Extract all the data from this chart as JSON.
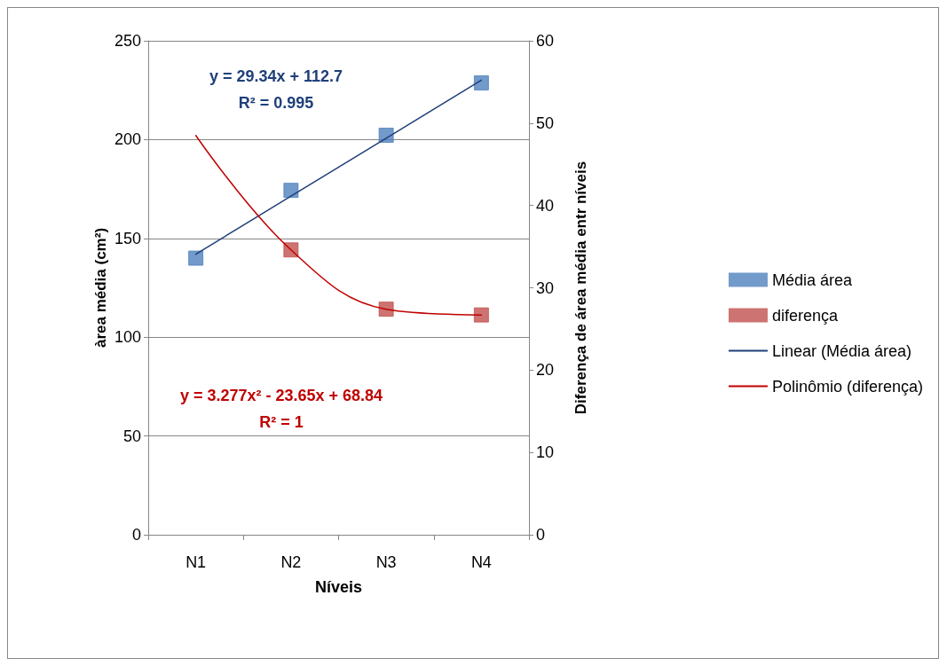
{
  "chart_data": {
    "type": "scatter",
    "xlabel": "Níveis",
    "ylabel": "àrea média (cm²)",
    "y2label": "Diferença de área média entr níveis",
    "categories": [
      "N1",
      "N2",
      "N3",
      "N4"
    ],
    "series": [
      {
        "name": "Média área",
        "marker": "square",
        "color": "#4f81bd",
        "values": [
          140,
          174.3,
          202.2,
          228.7
        ]
      },
      {
        "name": "diferença",
        "marker": "square",
        "axis": "y2",
        "color": "#c0504d",
        "values": [
          null,
          34.6,
          27.4,
          26.7
        ]
      },
      {
        "name": "Linear (Média área)",
        "type": "line",
        "marker": "none",
        "color": "#1f3f7a",
        "values": [
          142.0,
          171.4,
          200.7,
          230.1
        ]
      },
      {
        "name": "Polinômio (diferença)",
        "type": "line",
        "marker": "none",
        "axis": "y2",
        "color": "#c00000",
        "values": [
          48.5,
          34.6,
          27.4,
          26.7
        ]
      }
    ],
    "ylim": [
      0,
      250
    ],
    "yticks": [
      0,
      50,
      100,
      150,
      200,
      250
    ],
    "y2lim": [
      0,
      60
    ],
    "y2ticks": [
      0,
      10,
      20,
      30,
      40,
      50,
      60
    ],
    "annotations": [
      "y = 29.34x + 112.7\nR² = 0.995",
      "y = 3.277x² - 23.65x + 68.84\nR² = 1"
    ],
    "grid": "y",
    "legend": "right",
    "line_style": "solid"
  }
}
